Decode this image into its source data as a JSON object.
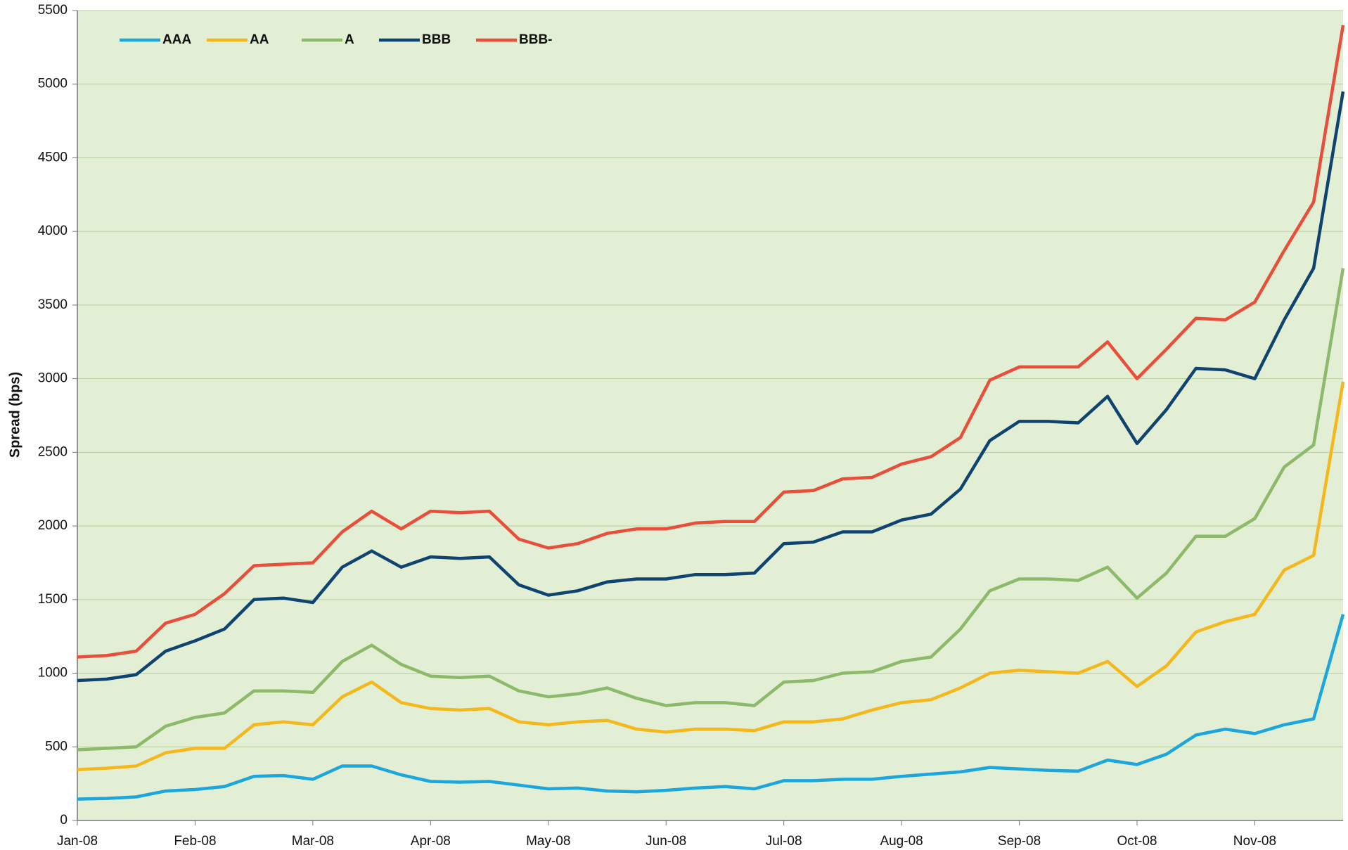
{
  "chart_data": {
    "type": "line",
    "y_label": "Spread (bps)",
    "categories": [
      "Jan-08",
      null,
      null,
      null,
      "Feb-08",
      null,
      null,
      null,
      "Mar-08",
      null,
      null,
      null,
      "Apr-08",
      null,
      null,
      null,
      "May-08",
      null,
      null,
      null,
      "Jun-08",
      null,
      null,
      null,
      "Jul-08",
      null,
      null,
      null,
      "Aug-08",
      null,
      null,
      null,
      "Sep-08",
      null,
      null,
      null,
      "Oct-08",
      null,
      null,
      null,
      "Nov-08",
      null,
      null,
      null
    ],
    "series": [
      {
        "name": "AAA",
        "color": "#1ca6dd",
        "values": [
          145,
          150,
          160,
          200,
          210,
          230,
          300,
          305,
          280,
          370,
          370,
          310,
          265,
          260,
          265,
          240,
          215,
          220,
          200,
          195,
          205,
          220,
          230,
          215,
          270,
          270,
          280,
          280,
          300,
          315,
          330,
          360,
          350,
          340,
          335,
          410,
          380,
          450,
          580,
          620,
          590,
          650,
          690,
          1400
        ]
      },
      {
        "name": "AA",
        "color": "#f5b81c",
        "values": [
          345,
          355,
          370,
          460,
          490,
          490,
          650,
          670,
          650,
          840,
          940,
          800,
          760,
          750,
          760,
          670,
          650,
          670,
          680,
          620,
          600,
          620,
          620,
          610,
          670,
          670,
          690,
          750,
          800,
          820,
          900,
          1000,
          1020,
          1010,
          1000,
          1080,
          910,
          1050,
          1280,
          1350,
          1400,
          1700,
          1800,
          2980
        ]
      },
      {
        "name": "A",
        "color": "#8cb96a",
        "values": [
          480,
          490,
          500,
          640,
          700,
          730,
          880,
          880,
          870,
          1080,
          1190,
          1060,
          980,
          970,
          980,
          880,
          840,
          860,
          900,
          830,
          780,
          800,
          800,
          780,
          940,
          950,
          1000,
          1010,
          1080,
          1110,
          1300,
          1560,
          1640,
          1640,
          1630,
          1720,
          1510,
          1680,
          1930,
          1930,
          2050,
          2400,
          2550,
          3750
        ]
      },
      {
        "name": "BBB",
        "color": "#0f4370",
        "values": [
          950,
          960,
          990,
          1150,
          1220,
          1300,
          1500,
          1510,
          1480,
          1720,
          1830,
          1720,
          1790,
          1780,
          1790,
          1600,
          1530,
          1560,
          1620,
          1640,
          1640,
          1670,
          1670,
          1680,
          1880,
          1890,
          1960,
          1960,
          2040,
          2080,
          2250,
          2580,
          2710,
          2710,
          2700,
          2880,
          2560,
          2790,
          3070,
          3060,
          3000,
          3400,
          3750,
          4950
        ]
      },
      {
        "name": "BBB-",
        "color": "#e84e3a",
        "values": [
          1110,
          1120,
          1150,
          1340,
          1400,
          1540,
          1730,
          1740,
          1750,
          1960,
          2100,
          1980,
          2100,
          2090,
          2100,
          1910,
          1850,
          1880,
          1950,
          1980,
          1980,
          2020,
          2030,
          2030,
          2230,
          2240,
          2320,
          2330,
          2420,
          2470,
          2600,
          2990,
          3080,
          3080,
          3080,
          3250,
          3000,
          3200,
          3410,
          3400,
          3520,
          3870,
          4200,
          5400
        ]
      }
    ],
    "ylim": [
      0,
      5500
    ],
    "yticks": [
      0,
      500,
      1000,
      1500,
      2000,
      2500,
      3000,
      3500,
      4000,
      4500,
      5000,
      5500
    ],
    "grid": true,
    "legend": "top-left",
    "background": "#e2efd4"
  }
}
